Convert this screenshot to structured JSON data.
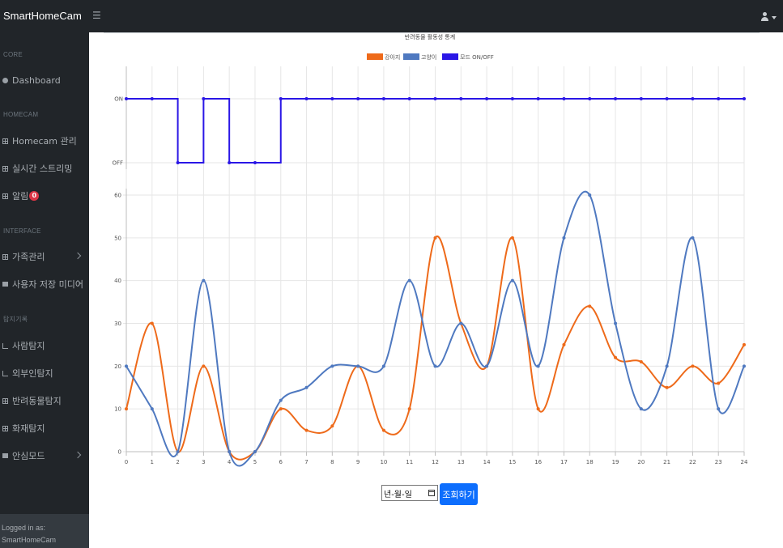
{
  "app": {
    "brand": "SmartHomeCam"
  },
  "sidebar": {
    "sections": [
      {
        "heading": "CORE",
        "items": [
          {
            "label": "Dashboard"
          }
        ]
      },
      {
        "heading": "HOMECAM",
        "items": [
          {
            "label": "Homecam 관리"
          },
          {
            "label": "실시간 스트리밍"
          },
          {
            "label": "알림",
            "badge": "0"
          }
        ]
      },
      {
        "heading": "INTERFACE",
        "items": [
          {
            "label": "가족관리"
          },
          {
            "label": "사용자 저장 미디어"
          }
        ]
      },
      {
        "heading": "탐지기록",
        "items": [
          {
            "label": "사람탐지"
          },
          {
            "label": "외부인탐지"
          },
          {
            "label": "반려동물탐지"
          },
          {
            "label": "화재탐지"
          },
          {
            "label": "안심모드"
          }
        ]
      }
    ],
    "footer": {
      "line1": "Logged in as:",
      "line2": "SmartHomeCam"
    }
  },
  "colors": {
    "dog": "#ee6a1a",
    "cat": "#4f79c0",
    "mode": "#2a16e6",
    "accent": "#0d6efd",
    "badge": "#dc3545"
  },
  "controls": {
    "date_placeholder": "년-월-일",
    "query_label": "조회하기"
  },
  "chart_data": {
    "type": "line",
    "title": "반려동물 활동성 통계",
    "legend_position": "top-center",
    "x": [
      0,
      1,
      2,
      3,
      4,
      5,
      6,
      7,
      8,
      9,
      10,
      11,
      12,
      13,
      14,
      15,
      16,
      17,
      18,
      19,
      20,
      21,
      22,
      23,
      24
    ],
    "x_ticks": [
      "0",
      "1",
      "2",
      "3",
      "4",
      "5",
      "6",
      "7",
      "8",
      "9",
      "10",
      "11",
      "12",
      "13",
      "14",
      "15",
      "16",
      "17",
      "18",
      "19",
      "20",
      "21",
      "22",
      "23",
      "24"
    ],
    "series": [
      {
        "name": "강아지",
        "color": "#ee6a1a",
        "values": [
          10,
          30,
          0,
          20,
          0,
          0,
          10,
          5,
          6,
          20,
          5,
          10,
          50,
          30,
          20,
          50,
          10,
          25,
          34,
          22,
          21,
          15,
          20,
          16,
          25
        ]
      },
      {
        "name": "고양이",
        "color": "#4f79c0",
        "values": [
          20,
          10,
          0,
          40,
          0,
          0,
          12,
          15,
          20,
          20,
          20,
          40,
          20,
          30,
          20,
          40,
          20,
          50,
          60,
          30,
          10,
          20,
          50,
          10,
          20
        ]
      },
      {
        "name": "모드 ON/OFF",
        "color": "#2a16e6",
        "values": [
          1,
          1,
          0,
          1,
          0,
          0,
          1,
          1,
          1,
          1,
          1,
          1,
          1,
          1,
          1,
          1,
          1,
          1,
          1,
          1,
          1,
          1,
          1,
          1,
          1
        ]
      }
    ],
    "activity_axis": {
      "ylim": [
        0,
        60
      ],
      "ticks": [
        "0",
        "10",
        "20",
        "30",
        "40",
        "50",
        "60"
      ]
    },
    "mode_axis": {
      "labels": [
        "OFF",
        "ON"
      ]
    },
    "grid": true
  }
}
